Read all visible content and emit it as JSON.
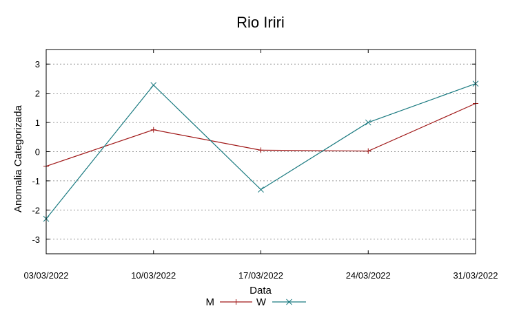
{
  "chart_data": {
    "type": "line",
    "title": "Rio Iriri",
    "xlabel": "Data",
    "ylabel": "Anomalia Categorizada",
    "categories": [
      "03/03/2022",
      "10/03/2022",
      "17/03/2022",
      "24/03/2022",
      "31/03/2022"
    ],
    "ylim": [
      -3.5,
      3.5
    ],
    "yticks": [
      "3",
      "2",
      "1",
      "0",
      "-1",
      "-2",
      "-3"
    ],
    "ytick_values": [
      3,
      2,
      1,
      0,
      -1,
      -2,
      -3
    ],
    "grid": true,
    "legend_position": "bottom",
    "series": [
      {
        "name": "M",
        "color": "#a01818",
        "marker": "plus",
        "values": [
          -0.5,
          0.75,
          0.05,
          0.02,
          1.65
        ]
      },
      {
        "name": "W",
        "color": "#1a7a80",
        "marker": "cross",
        "values": [
          -2.3,
          2.28,
          -1.3,
          1.0,
          2.33
        ]
      }
    ]
  }
}
